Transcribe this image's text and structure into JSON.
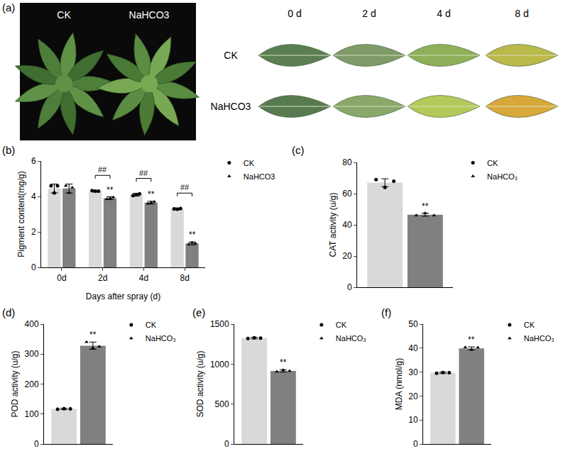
{
  "photo_panel": {
    "label": "(a)",
    "plants": [
      "CK",
      "NaHCO3"
    ],
    "days": [
      "0 d",
      "2 d",
      "4 d",
      "8 d"
    ],
    "rows": [
      "CK",
      "NaHCO3"
    ]
  },
  "chart_data": [
    {
      "type": "bar",
      "panel": "(b)",
      "x_label": "Days after spray (d)",
      "y_label": "Pigment content(mg/g)",
      "categories": [
        "0d",
        "2d",
        "4d",
        "8d"
      ],
      "ylim": [
        0,
        6
      ],
      "yticks": [
        0,
        2,
        4,
        6
      ],
      "grid": false,
      "legend": "outside upper right",
      "bracket_labels": [
        null,
        "##",
        "##",
        "##"
      ],
      "series": [
        {
          "name": "CK",
          "color": "#d9d9d9",
          "marker": "circle",
          "values": [
            4.45,
            4.3,
            4.1,
            3.3
          ],
          "errors": [
            0.25,
            0.05,
            0.08,
            0.05
          ],
          "points": [
            [
              4.6,
              4.2,
              4.6
            ],
            [
              4.33,
              4.3,
              4.3
            ],
            [
              4.05,
              4.1,
              4.15
            ],
            [
              3.3,
              3.28,
              3.32
            ]
          ],
          "significance": [
            null,
            null,
            null,
            null
          ]
        },
        {
          "name": "NaHCO3",
          "color": "#808080",
          "marker": "triangle",
          "values": [
            4.45,
            3.9,
            3.65,
            1.35
          ],
          "errors": [
            0.25,
            0.08,
            0.08,
            0.08
          ],
          "points": [
            [
              4.6,
              4.2,
              4.5
            ],
            [
              3.85,
              3.9,
              3.95
            ],
            [
              3.6,
              3.65,
              3.7
            ],
            [
              1.3,
              1.4,
              1.35
            ]
          ],
          "significance": [
            null,
            "**",
            "**",
            "**"
          ]
        }
      ]
    },
    {
      "type": "bar",
      "panel": "(c)",
      "y_label": "CAT activity (u/g)",
      "categories": [
        null
      ],
      "ylim": [
        0,
        80
      ],
      "yticks": [
        0,
        20,
        40,
        60,
        80
      ],
      "grid": false,
      "legend": "outside upper right",
      "tick_labels": "y",
      "series": [
        {
          "name": "CK",
          "color": "#d9d9d9",
          "marker": "circle",
          "values": [
            67
          ],
          "errors": [
            2.5
          ],
          "points": [
            [
              69,
              64,
              68
            ]
          ],
          "significance": [
            null
          ]
        },
        {
          "name": "NaHCO₃",
          "color": "#808080",
          "marker": "triangle",
          "values": [
            46.5
          ],
          "errors": [
            1
          ],
          "points": [
            [
              46,
              47.5,
              46
            ]
          ],
          "significance": [
            "**"
          ]
        }
      ]
    },
    {
      "type": "bar",
      "panel": "(d)",
      "y_label": "POD activity (u/g)",
      "categories": [
        null
      ],
      "ylim": [
        0,
        400
      ],
      "yticks": [
        0,
        100,
        200,
        300,
        400
      ],
      "grid": false,
      "legend": "outside upper right",
      "tick_labels": "y",
      "series": [
        {
          "name": "CK",
          "color": "#d9d9d9",
          "marker": "circle",
          "values": [
            117
          ],
          "errors": [
            2
          ],
          "points": [
            [
              116,
              118,
              117
            ]
          ],
          "significance": [
            null
          ]
        },
        {
          "name": "NaHCO₃",
          "color": "#808080",
          "marker": "triangle",
          "values": [
            328
          ],
          "errors": [
            12
          ],
          "points": [
            [
              340,
              320,
              325
            ]
          ],
          "significance": [
            "**"
          ]
        }
      ]
    },
    {
      "type": "bar",
      "panel": "(e)",
      "y_label": "SOD activity (u/g)",
      "categories": [
        null
      ],
      "ylim": [
        0,
        1500
      ],
      "yticks": [
        0,
        500,
        1000,
        1500
      ],
      "grid": false,
      "legend": "outside upper right",
      "tick_labels": "y",
      "series": [
        {
          "name": "CK",
          "color": "#d9d9d9",
          "marker": "circle",
          "values": [
            1325
          ],
          "errors": [
            10
          ],
          "points": [
            [
              1320,
              1330,
              1325
            ]
          ],
          "significance": [
            null
          ]
        },
        {
          "name": "NaHCO₃",
          "color": "#808080",
          "marker": "triangle",
          "values": [
            915
          ],
          "errors": [
            15
          ],
          "points": [
            [
              905,
              925,
              915
            ]
          ],
          "significance": [
            "**"
          ]
        }
      ]
    },
    {
      "type": "bar",
      "panel": "(f)",
      "y_label": "MDA (nmol/g)",
      "categories": [
        null
      ],
      "ylim": [
        0,
        50
      ],
      "yticks": [
        0,
        10,
        20,
        30,
        40,
        50
      ],
      "grid": false,
      "legend": "outside upper right",
      "tick_labels": "y",
      "series": [
        {
          "name": "CK",
          "color": "#d9d9d9",
          "marker": "circle",
          "values": [
            29.7
          ],
          "errors": [
            0.3
          ],
          "points": [
            [
              29.5,
              29.8,
              29.7
            ]
          ],
          "significance": [
            null
          ]
        },
        {
          "name": "NaHCO₃",
          "color": "#808080",
          "marker": "triangle",
          "values": [
            39.9
          ],
          "errors": [
            0.6
          ],
          "points": [
            [
              40.3,
              39.3,
              40.2
            ]
          ],
          "significance": [
            "**"
          ]
        }
      ]
    }
  ]
}
